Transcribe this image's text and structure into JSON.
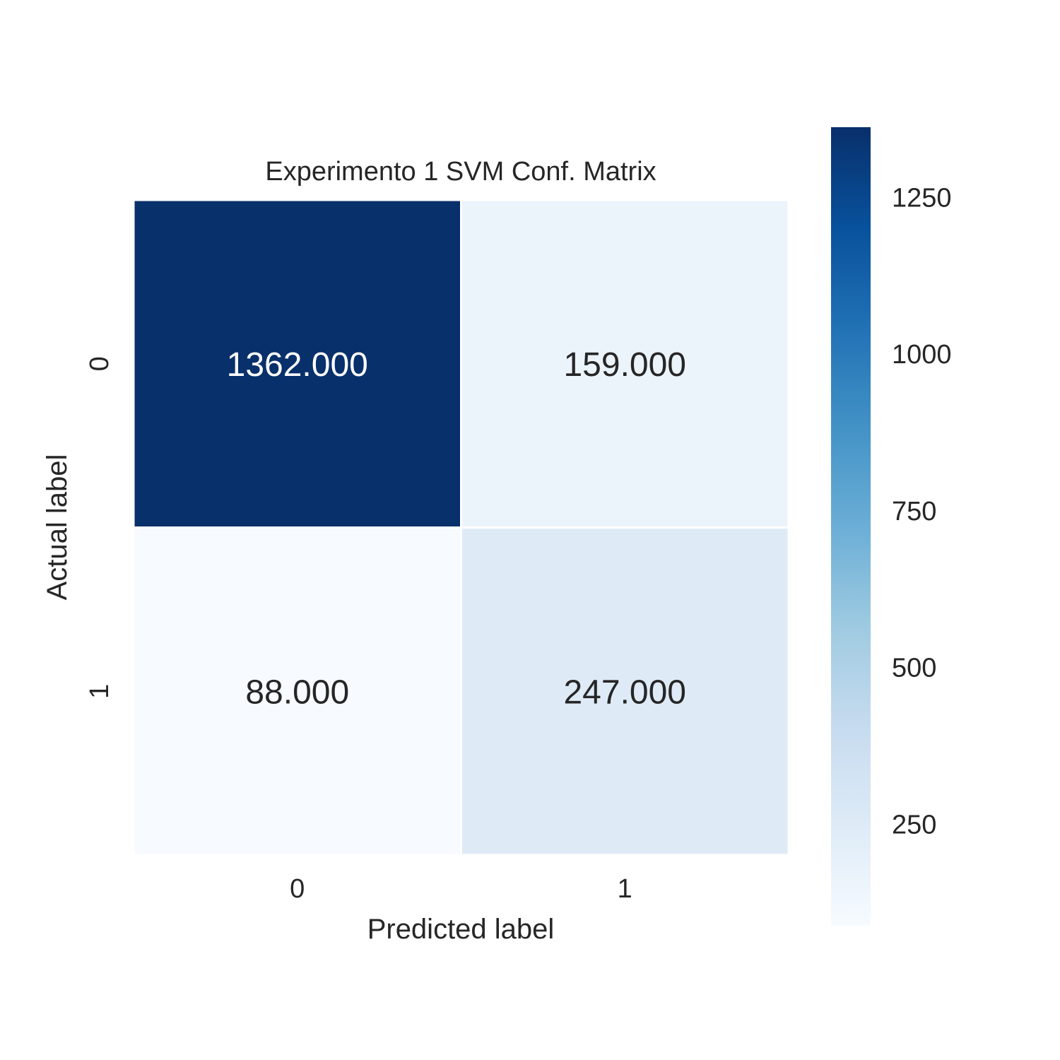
{
  "chart_data": {
    "type": "heatmap",
    "title": "Experimento 1 SVM Conf. Matrix",
    "xlabel": "Predicted label",
    "ylabel": "Actual label",
    "x_categories": [
      "0",
      "1"
    ],
    "y_categories": [
      "0",
      "1"
    ],
    "values": [
      [
        1362,
        159
      ],
      [
        88,
        247
      ]
    ],
    "cell_labels": [
      [
        "1362.000",
        "159.000"
      ],
      [
        "88.000",
        "247.000"
      ]
    ],
    "colormap": "Blues",
    "colorbar": {
      "range": [
        88,
        1362
      ],
      "ticks": [
        250,
        500,
        750,
        1000,
        1250
      ],
      "tick_labels": [
        "250",
        "500",
        "750",
        "1000",
        "1250"
      ]
    }
  }
}
